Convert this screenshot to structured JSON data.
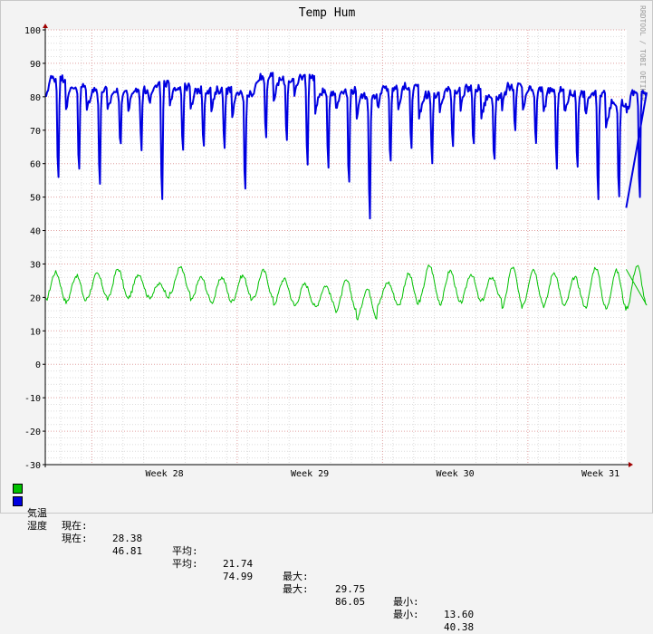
{
  "chart_data": {
    "type": "line",
    "title": "Temp Hum",
    "watermark": "RRDTOOL / TOBI OETIKER",
    "ylim": [
      -30,
      100
    ],
    "ytick_step": 10,
    "yticks": [
      "100",
      "90",
      "80",
      "70",
      "60",
      "50",
      "40",
      "30",
      "20",
      "10",
      "0",
      "-10",
      "-20",
      "-30"
    ],
    "xlim_weeks": [
      27.18,
      31.18
    ],
    "xticks": [
      {
        "label": "Week 28",
        "week": 28
      },
      {
        "label": "Week 29",
        "week": 29
      },
      {
        "label": "Week 30",
        "week": 30
      },
      {
        "label": "Week 31",
        "week": 31
      }
    ],
    "grid": true,
    "colors": {
      "background": "#f3f3f3",
      "canvas": "#ffffff",
      "grid_minor": "#dcdcdc",
      "grid_major": "#e0a0a0",
      "axis": "#000000",
      "temp": "#00c000",
      "hum": "#0000e0"
    },
    "series": [
      {
        "name": "気温",
        "color": "#00c000",
        "daily_peaks": [
          27.5,
          26.5,
          27.0,
          28.5,
          27.0,
          24.0,
          29.0,
          26.0,
          26.0,
          26.5,
          28.0,
          25.5,
          24.0,
          23.5,
          25.0,
          22.5,
          24.5,
          27.0,
          29.5,
          28.0,
          27.0,
          26.0,
          29.0,
          28.5,
          27.5,
          26.0,
          29.0,
          28.0,
          29.5
        ],
        "daily_troughs": [
          19.0,
          18.5,
          20.0,
          19.5,
          20.0,
          20.0,
          21.0,
          19.0,
          18.5,
          19.0,
          19.5,
          18.0,
          17.5,
          17.0,
          16.0,
          13.6,
          18.0,
          17.5,
          19.0,
          18.0,
          18.5,
          19.0,
          17.0,
          18.0,
          17.5,
          17.5,
          17.0,
          16.5,
          17.0
        ],
        "legend": {
          "current": "28.38",
          "average": "21.74",
          "maximum": "29.75",
          "minimum": "13.60"
        }
      },
      {
        "name": "湿度",
        "color": "#0000e0",
        "daily_peaks": [
          85.5,
          83.0,
          82.0,
          81.5,
          82.0,
          84.0,
          83.0,
          82.0,
          82.0,
          81.0,
          86.0,
          85.0,
          86.0,
          81.5,
          82.0,
          80.5,
          82.5,
          83.0,
          80.5,
          82.0,
          82.5,
          80.0,
          83.0,
          82.0,
          82.0,
          81.0,
          81.0,
          78.0,
          81.0
        ],
        "daily_troughs": [
          53.5,
          55.0,
          51.0,
          63.0,
          63.0,
          45.0,
          63.0,
          64.0,
          64.0,
          50.0,
          67.0,
          66.0,
          58.0,
          57.5,
          51.0,
          40.4,
          57.5,
          63.0,
          58.5,
          64.0,
          63.5,
          58.0,
          67.5,
          64.0,
          57.0,
          57.0,
          45.5,
          48.0,
          46.81
        ],
        "legend": {
          "current": "46.81",
          "average": "74.99",
          "maximum": "86.05",
          "minimum": "40.38"
        }
      }
    ]
  },
  "legend": {
    "labels": {
      "current": "現在:",
      "average": "平均:",
      "maximum": "最大:",
      "minimum": "最小:"
    },
    "rows": [
      {
        "name": "気温",
        "color": "#00c000",
        "current": "28.38",
        "average": "21.74",
        "maximum": "29.75",
        "minimum": "13.60"
      },
      {
        "name": "湿度",
        "color": "#0000e0",
        "current": "46.81",
        "average": "74.99",
        "maximum": "86.05",
        "minimum": "40.38"
      }
    ]
  }
}
